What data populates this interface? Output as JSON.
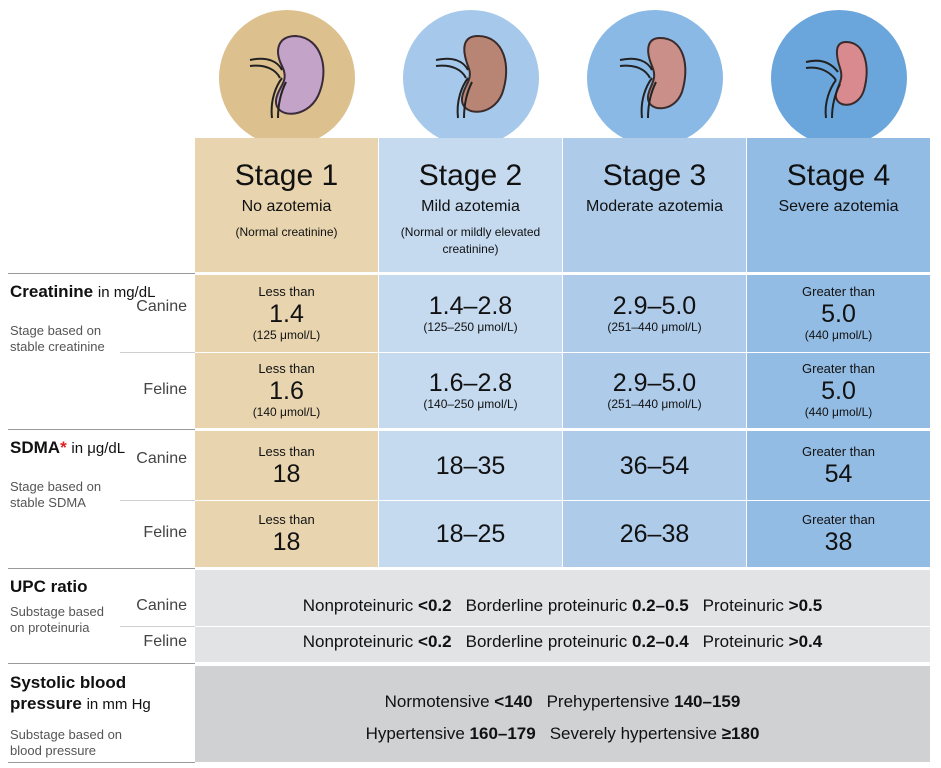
{
  "stages": [
    {
      "name": "Stage 1",
      "description": "No azotemia",
      "note": "(Normal creatinine)"
    },
    {
      "name": "Stage 2",
      "description": "Mild azotemia",
      "note": "(Normal or mildly elevated creatinine)"
    },
    {
      "name": "Stage 3",
      "description": "Moderate azotemia",
      "note": null
    },
    {
      "name": "Stage 4",
      "description": "Severe azotemia",
      "note": null
    }
  ],
  "sections": [
    {
      "title": "Creatinine",
      "marker": null,
      "unit": "in mg/dL",
      "sublabel": "Stage based on stable creatinine",
      "rows": [
        {
          "species": "Canine",
          "cells": [
            {
              "prefix": "Less than",
              "value": "1.4",
              "note": "(125 μmol/L)"
            },
            {
              "prefix": null,
              "value": "1.4–2.8",
              "note": "(125–250 μmol/L)"
            },
            {
              "prefix": null,
              "value": "2.9–5.0",
              "note": "(251–440 μmol/L)"
            },
            {
              "prefix": "Greater than",
              "value": "5.0",
              "note": "(440 μmol/L)"
            }
          ]
        },
        {
          "species": "Feline",
          "cells": [
            {
              "prefix": "Less than",
              "value": "1.6",
              "note": "(140 μmol/L)"
            },
            {
              "prefix": null,
              "value": "1.6–2.8",
              "note": "(140–250 μmol/L)"
            },
            {
              "prefix": null,
              "value": "2.9–5.0",
              "note": "(251–440 μmol/L)"
            },
            {
              "prefix": "Greater than",
              "value": "5.0",
              "note": "(440 μmol/L)"
            }
          ]
        }
      ]
    },
    {
      "title": "SDMA",
      "marker": "*",
      "unit": "in μg/dL",
      "sublabel": "Stage based on stable SDMA",
      "rows": [
        {
          "species": "Canine",
          "cells": [
            {
              "prefix": "Less than",
              "value": "18",
              "note": null
            },
            {
              "prefix": null,
              "value": "18–35",
              "note": null
            },
            {
              "prefix": null,
              "value": "36–54",
              "note": null
            },
            {
              "prefix": "Greater than",
              "value": "54",
              "note": null
            }
          ]
        },
        {
          "species": "Feline",
          "cells": [
            {
              "prefix": "Less than",
              "value": "18",
              "note": null
            },
            {
              "prefix": null,
              "value": "18–25",
              "note": null
            },
            {
              "prefix": null,
              "value": "26–38",
              "note": null
            },
            {
              "prefix": "Greater than",
              "value": "38",
              "note": null
            }
          ]
        }
      ]
    }
  ],
  "upc": {
    "title": "UPC ratio",
    "sublabel": "Substage based on proteinuria",
    "rows": [
      {
        "species": "Canine",
        "items": [
          {
            "label": "Nonproteinuric",
            "value": "<0.2"
          },
          {
            "label": "Borderline proteinuric",
            "value": "0.2–0.5"
          },
          {
            "label": "Proteinuric",
            "value": ">0.5"
          }
        ]
      },
      {
        "species": "Feline",
        "items": [
          {
            "label": "Nonproteinuric",
            "value": "<0.2"
          },
          {
            "label": "Borderline proteinuric",
            "value": "0.2–0.4"
          },
          {
            "label": "Proteinuric",
            "value": ">0.4"
          }
        ]
      }
    ]
  },
  "blood_pressure": {
    "title": "Systolic blood pressure",
    "unit": "in mm Hg",
    "sublabel": "Substage based on blood pressure",
    "rows": [
      [
        {
          "label": "Normotensive",
          "value": "<140"
        },
        {
          "label": "Prehypertensive",
          "value": "140–159"
        }
      ],
      [
        {
          "label": "Hypertensive",
          "value": "160–179"
        },
        {
          "label": "Severely hypertensive",
          "value": "≥180"
        }
      ]
    ]
  }
}
